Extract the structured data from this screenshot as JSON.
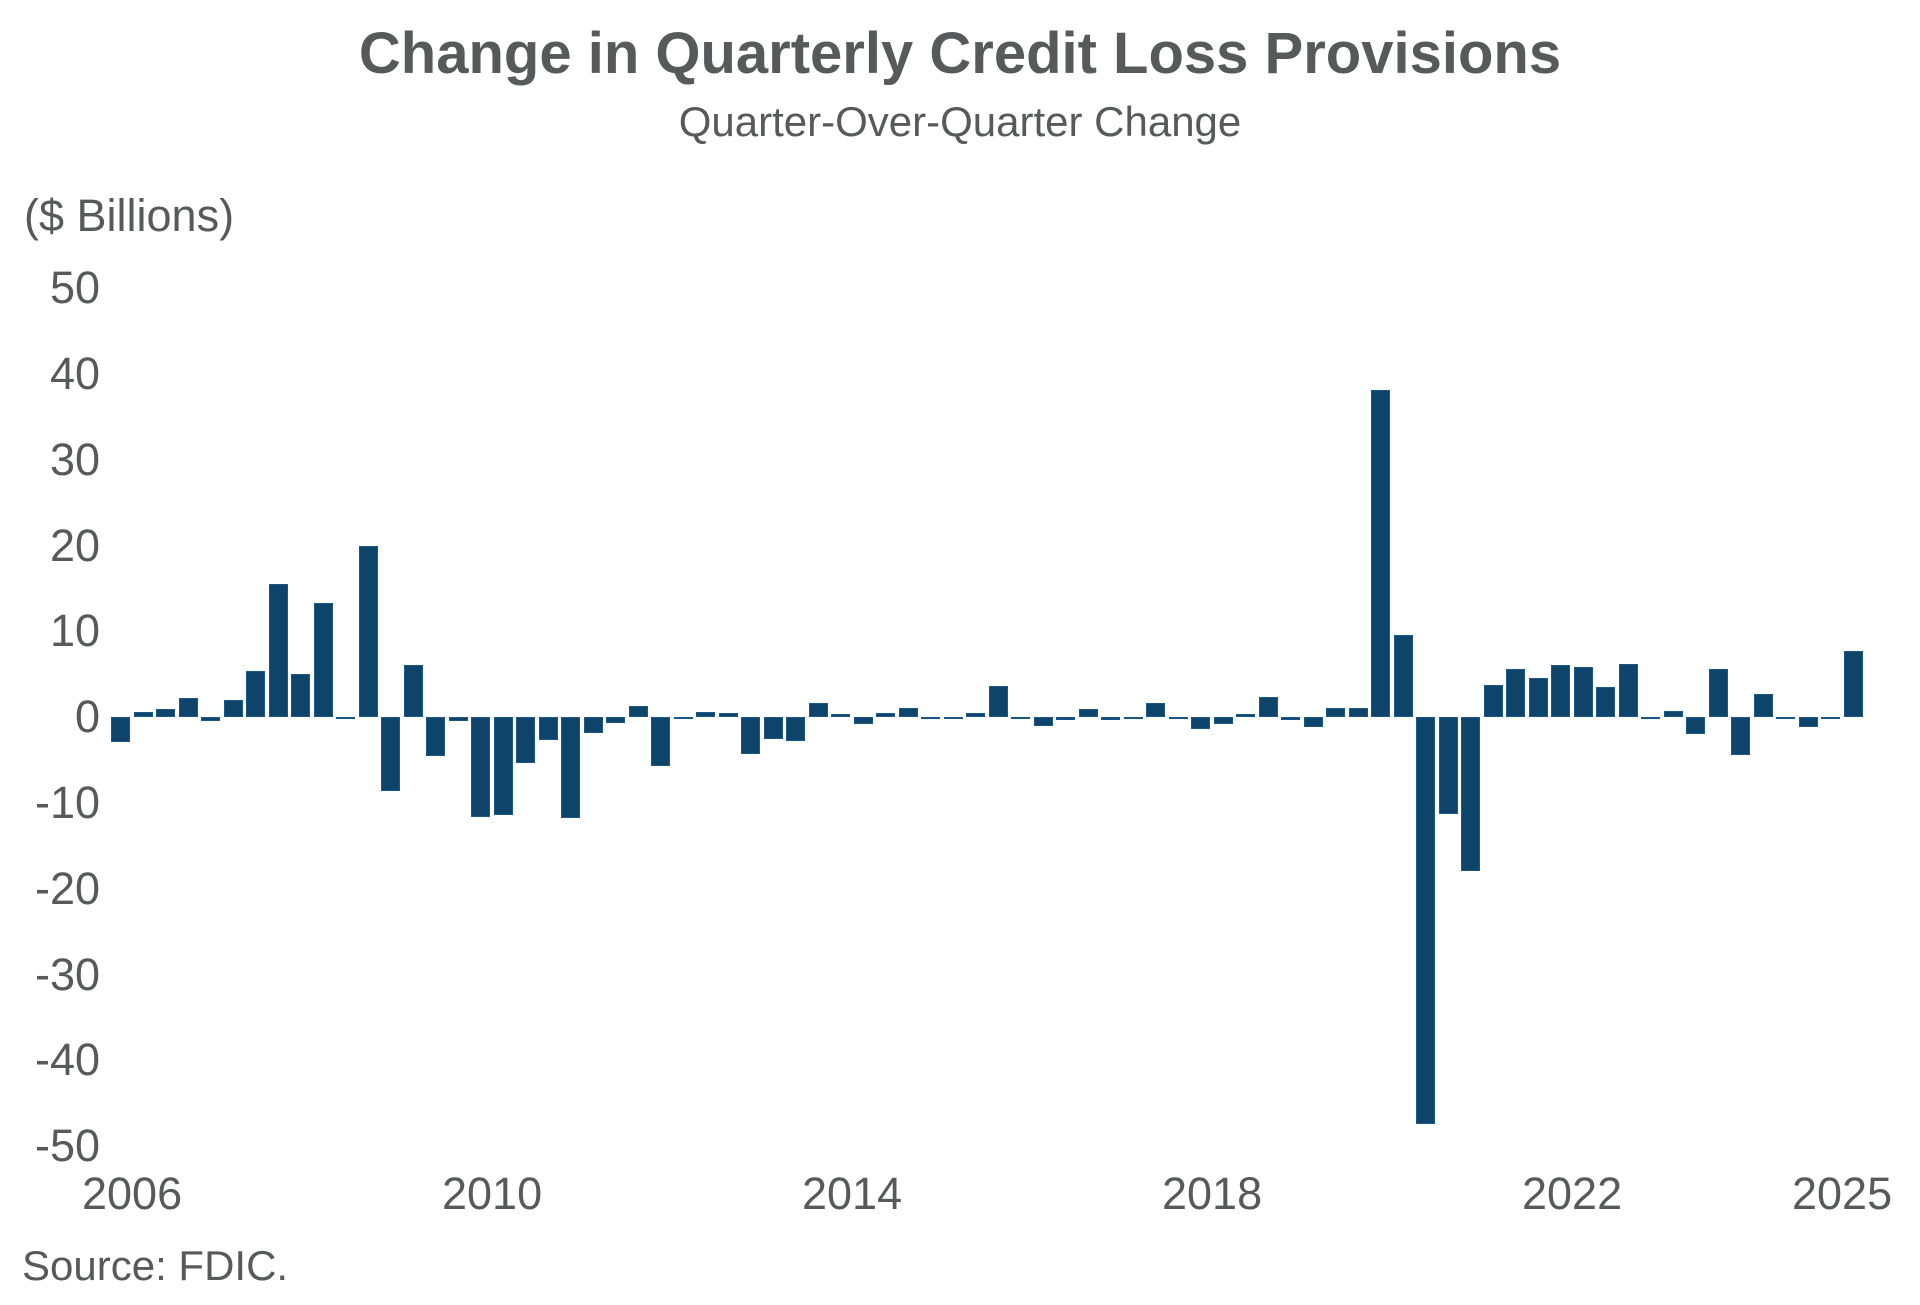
{
  "header": {
    "title": "Change in Quarterly Credit Loss Provisions",
    "subtitle": "Quarter-Over-Quarter Change"
  },
  "footer": {
    "source": "Source: FDIC."
  },
  "colors": {
    "bar_fill": "#0e4469",
    "bar_edge": "#2872b0",
    "text": "#58595b",
    "background": "#ffffff"
  },
  "chart_data": {
    "type": "bar",
    "title": "Change in Quarterly Credit Loss Provisions",
    "subtitle": "Quarter-Over-Quarter Change",
    "ylabel": "($ Billions)",
    "xlabel": "",
    "ylim": [
      -50,
      50
    ],
    "ytick_labels": [
      "50",
      "40",
      "30",
      "20",
      "10",
      "0",
      "-10",
      "-20",
      "-30",
      "-40",
      "-50"
    ],
    "ytick_values": [
      50,
      40,
      30,
      20,
      10,
      0,
      -10,
      -20,
      -30,
      -40,
      -50
    ],
    "xtick_labels": [
      "2006",
      "2010",
      "2014",
      "2018",
      "2022",
      "2025"
    ],
    "xtick_years": [
      2006,
      2010,
      2014,
      2018,
      2022,
      2025
    ],
    "grid": false,
    "legend": "none",
    "start_quarter": "2006 Q1",
    "end_quarter": "2025 Q2",
    "categories": [
      "2006 Q1",
      "2006 Q2",
      "2006 Q3",
      "2006 Q4",
      "2007 Q1",
      "2007 Q2",
      "2007 Q3",
      "2007 Q4",
      "2008 Q1",
      "2008 Q2",
      "2008 Q3",
      "2008 Q4",
      "2009 Q1",
      "2009 Q2",
      "2009 Q3",
      "2009 Q4",
      "2010 Q1",
      "2010 Q2",
      "2010 Q3",
      "2010 Q4",
      "2011 Q1",
      "2011 Q2",
      "2011 Q3",
      "2011 Q4",
      "2012 Q1",
      "2012 Q2",
      "2012 Q3",
      "2012 Q4",
      "2013 Q1",
      "2013 Q2",
      "2013 Q3",
      "2013 Q4",
      "2014 Q1",
      "2014 Q2",
      "2014 Q3",
      "2014 Q4",
      "2015 Q1",
      "2015 Q2",
      "2015 Q3",
      "2015 Q4",
      "2016 Q1",
      "2016 Q2",
      "2016 Q3",
      "2016 Q4",
      "2017 Q1",
      "2017 Q2",
      "2017 Q3",
      "2017 Q4",
      "2018 Q1",
      "2018 Q2",
      "2018 Q3",
      "2018 Q4",
      "2019 Q1",
      "2019 Q2",
      "2019 Q3",
      "2019 Q4",
      "2020 Q1",
      "2020 Q2",
      "2020 Q3",
      "2020 Q4",
      "2021 Q1",
      "2021 Q2",
      "2021 Q3",
      "2021 Q4",
      "2022 Q1",
      "2022 Q2",
      "2022 Q3",
      "2022 Q4",
      "2023 Q1",
      "2023 Q2",
      "2023 Q3",
      "2023 Q4",
      "2024 Q1",
      "2024 Q2",
      "2024 Q3",
      "2024 Q4",
      "2025 Q1",
      "2025 Q2"
    ],
    "values": [
      -3.0,
      0.6,
      0.9,
      2.2,
      -0.5,
      2.0,
      5.3,
      15.5,
      5.0,
      13.2,
      -0.3,
      19.9,
      -8.7,
      6.0,
      -4.6,
      -0.5,
      -11.7,
      -11.5,
      -5.4,
      -2.7,
      -11.8,
      -1.9,
      -0.7,
      1.3,
      -5.8,
      -0.3,
      0.5,
      0.4,
      -4.4,
      -2.6,
      -2.8,
      1.6,
      0.3,
      -0.9,
      0.4,
      1.0,
      -0.2,
      -0.3,
      0.4,
      3.6,
      -0.3,
      -1.1,
      -0.4,
      0.9,
      -0.4,
      -0.2,
      1.6,
      -0.3,
      -1.4,
      -0.9,
      0.3,
      2.3,
      -0.4,
      -1.2,
      1.0,
      1.0,
      38.1,
      9.5,
      -47.5,
      -11.3,
      -18.0,
      3.7,
      5.6,
      4.5,
      6.0,
      5.8,
      3.5,
      6.2,
      -0.2,
      0.7,
      -2.0,
      5.6,
      -4.5,
      2.7,
      -0.3,
      -1.2,
      -0.1,
      7.6
    ]
  }
}
